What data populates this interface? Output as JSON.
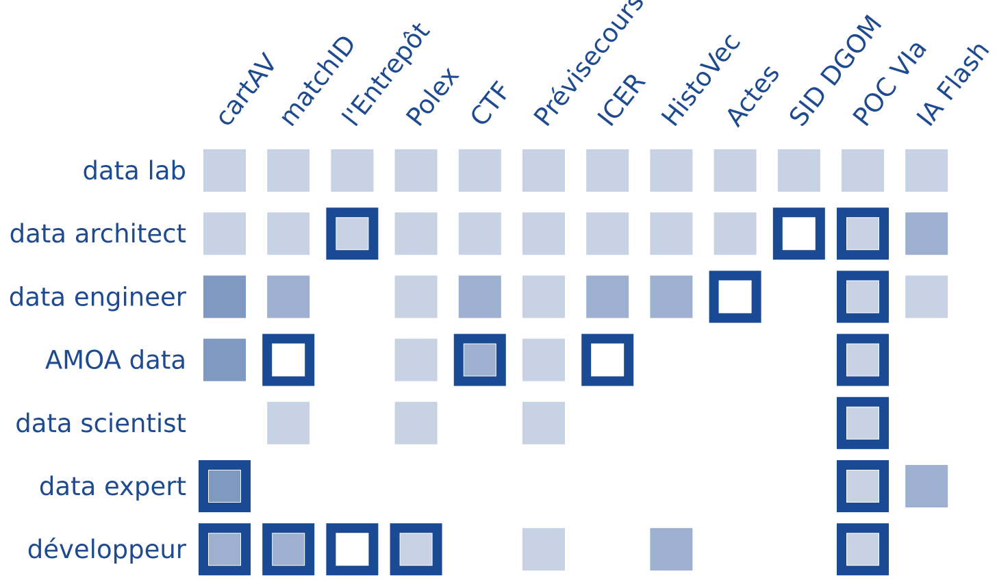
{
  "chart_data": {
    "type": "heatmap",
    "title": "",
    "xlabel": "",
    "ylabel": "",
    "columns": [
      "cartAV",
      "matchID",
      "l'Entrepôt",
      "Polex",
      "CTF",
      "Prévisecours",
      "ICER",
      "HistoVec",
      "Actes",
      "SID DGOM",
      "POC VIa",
      "IA Flash"
    ],
    "rows": [
      "data lab",
      "data architect",
      "data engineer",
      "AMOA data",
      "data scientist",
      "data expert",
      "développeur"
    ],
    "intensity_scale": {
      "0": "absent",
      "1": "light",
      "2": "medium",
      "3": "dark"
    },
    "intensity": [
      [
        1,
        1,
        1,
        1,
        1,
        1,
        1,
        1,
        1,
        1,
        1,
        1
      ],
      [
        1,
        1,
        1,
        1,
        1,
        1,
        1,
        1,
        1,
        0,
        1,
        2
      ],
      [
        3,
        2,
        0,
        1,
        2,
        1,
        2,
        2,
        0,
        0,
        1,
        1
      ],
      [
        3,
        0,
        0,
        1,
        2,
        1,
        0,
        0,
        0,
        0,
        1,
        0
      ],
      [
        0,
        1,
        0,
        1,
        0,
        1,
        0,
        0,
        0,
        0,
        1,
        0
      ],
      [
        3,
        0,
        0,
        0,
        0,
        0,
        0,
        0,
        0,
        0,
        1,
        2
      ],
      [
        2,
        2,
        0,
        1,
        0,
        1,
        0,
        2,
        0,
        0,
        1,
        0
      ]
    ],
    "highlighted": [
      [
        0,
        0,
        0,
        0,
        0,
        0,
        0,
        0,
        0,
        0,
        0,
        0
      ],
      [
        0,
        0,
        1,
        0,
        0,
        0,
        0,
        0,
        0,
        1,
        1,
        0
      ],
      [
        0,
        0,
        0,
        0,
        0,
        0,
        0,
        0,
        1,
        0,
        1,
        0
      ],
      [
        0,
        1,
        0,
        0,
        1,
        0,
        1,
        0,
        0,
        0,
        1,
        0
      ],
      [
        0,
        0,
        0,
        0,
        0,
        0,
        0,
        0,
        0,
        0,
        1,
        0
      ],
      [
        1,
        0,
        0,
        0,
        0,
        0,
        0,
        0,
        0,
        0,
        1,
        0
      ],
      [
        1,
        1,
        1,
        1,
        0,
        0,
        0,
        0,
        0,
        0,
        1,
        0
      ]
    ],
    "colors": {
      "light": "#c7d2e4",
      "medium": "#9db0d0",
      "dark": "#7f99c2",
      "highlight_border": "#1a4a94",
      "highlight_fill": "#ffffff",
      "text": "#1e4a8f"
    },
    "legend": "none",
    "grid": false
  }
}
